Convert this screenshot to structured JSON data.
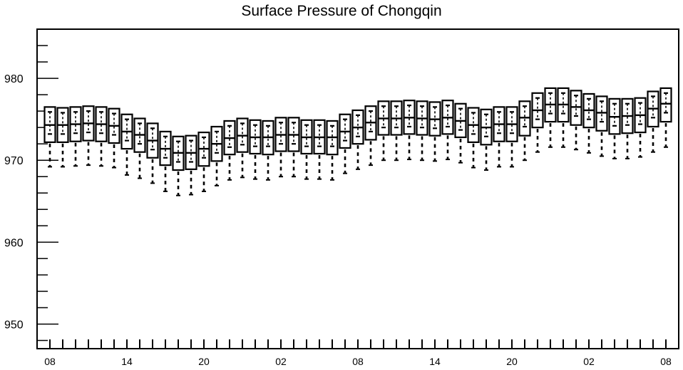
{
  "chart_data": {
    "type": "box",
    "title": "Surface Pressure of Chongqin",
    "xlabel": "",
    "ylabel": "",
    "ylim": [
      947,
      986
    ],
    "yticks": [
      950,
      960,
      970,
      980
    ],
    "ytick_labels": [
      "950",
      "960",
      "970",
      "980"
    ],
    "xtick_labels": [
      "08",
      "14",
      "20",
      "02",
      "08",
      "14",
      "20",
      "02",
      "08"
    ],
    "xtick_hours": [
      0,
      6,
      12,
      18,
      24,
      30,
      36,
      42,
      48
    ],
    "hours": [
      0,
      1,
      2,
      3,
      4,
      5,
      6,
      7,
      8,
      9,
      10,
      11,
      12,
      13,
      14,
      15,
      16,
      17,
      18,
      19,
      20,
      21,
      22,
      23,
      24,
      25,
      26,
      27,
      28,
      29,
      30,
      31,
      32,
      33,
      34,
      35,
      36,
      37,
      38,
      39,
      40,
      41,
      42,
      43,
      44,
      45,
      46,
      47,
      48
    ],
    "q3": [
      976.5,
      976.4,
      976.5,
      976.6,
      976.5,
      976.3,
      975.6,
      975.1,
      974.5,
      973.5,
      972.9,
      973.0,
      973.4,
      974.1,
      974.8,
      975.1,
      974.9,
      974.8,
      975.2,
      975.2,
      974.9,
      974.9,
      974.8,
      975.6,
      976.1,
      976.6,
      977.2,
      977.2,
      977.3,
      977.2,
      977.1,
      977.3,
      976.9,
      976.4,
      976.2,
      976.5,
      976.5,
      977.2,
      978.2,
      978.8,
      978.8,
      978.5,
      978.1,
      977.8,
      977.5,
      977.5,
      977.6,
      978.4,
      978.8
    ],
    "upper": [
      975.9,
      975.8,
      975.9,
      976.0,
      975.9,
      975.7,
      975.0,
      974.5,
      973.9,
      972.9,
      972.3,
      972.4,
      972.8,
      973.5,
      974.2,
      974.5,
      974.3,
      974.2,
      974.6,
      974.6,
      974.3,
      974.3,
      974.2,
      975.0,
      975.5,
      976.0,
      976.6,
      976.6,
      976.7,
      976.6,
      976.5,
      976.7,
      976.3,
      975.8,
      975.6,
      975.9,
      975.9,
      976.6,
      977.6,
      978.2,
      978.2,
      977.9,
      977.5,
      977.2,
      976.9,
      976.9,
      977.0,
      977.8,
      978.2
    ],
    "median": [
      974.3,
      974.3,
      974.4,
      974.5,
      974.4,
      974.2,
      973.5,
      973.1,
      972.4,
      971.4,
      970.9,
      970.9,
      971.4,
      972.0,
      972.7,
      973.0,
      972.8,
      972.8,
      973.1,
      973.1,
      972.8,
      972.8,
      972.8,
      973.5,
      974.0,
      974.6,
      975.1,
      975.1,
      975.2,
      975.1,
      975.0,
      975.2,
      974.8,
      974.3,
      974.0,
      974.4,
      974.4,
      975.2,
      976.1,
      976.8,
      976.8,
      976.5,
      976.1,
      975.8,
      975.3,
      975.4,
      975.5,
      976.3,
      976.9
    ],
    "lower": [
      973.2,
      973.2,
      973.3,
      973.4,
      973.3,
      973.1,
      972.4,
      972.0,
      971.3,
      970.3,
      969.8,
      969.8,
      970.3,
      970.9,
      971.6,
      971.9,
      971.7,
      971.7,
      972.0,
      972.0,
      971.7,
      971.7,
      971.7,
      972.4,
      972.9,
      973.5,
      974.0,
      974.0,
      974.1,
      974.0,
      973.9,
      974.1,
      973.7,
      973.2,
      972.9,
      973.3,
      973.3,
      974.1,
      975.0,
      975.7,
      975.7,
      975.4,
      975.0,
      974.7,
      974.2,
      974.3,
      974.4,
      975.2,
      975.8
    ],
    "q1": [
      972.2,
      972.2,
      972.3,
      972.4,
      972.3,
      972.1,
      971.4,
      971.0,
      970.3,
      969.4,
      968.8,
      968.9,
      969.3,
      969.9,
      970.7,
      971.0,
      970.8,
      970.7,
      971.1,
      971.1,
      970.8,
      970.8,
      970.7,
      971.5,
      972.0,
      972.5,
      973.1,
      973.1,
      973.2,
      973.1,
      973.0,
      973.2,
      972.8,
      972.2,
      971.9,
      972.3,
      972.3,
      973.0,
      974.0,
      974.7,
      974.7,
      974.3,
      974.0,
      973.6,
      973.2,
      973.3,
      973.4,
      974.1,
      974.7
    ],
    "wlow": [
      969.2,
      969.2,
      969.3,
      969.4,
      969.3,
      969.1,
      968.2,
      967.8,
      967.2,
      966.2,
      965.7,
      965.8,
      966.2,
      966.9,
      967.6,
      967.9,
      967.7,
      967.6,
      968.0,
      968.0,
      967.7,
      967.7,
      967.6,
      968.4,
      968.9,
      969.4,
      970.0,
      970.0,
      970.1,
      970.0,
      969.9,
      970.1,
      969.7,
      969.1,
      968.8,
      969.2,
      969.2,
      970.0,
      971.0,
      971.6,
      971.6,
      971.3,
      970.9,
      970.5,
      970.2,
      970.2,
      970.4,
      971.0,
      971.6
    ]
  }
}
